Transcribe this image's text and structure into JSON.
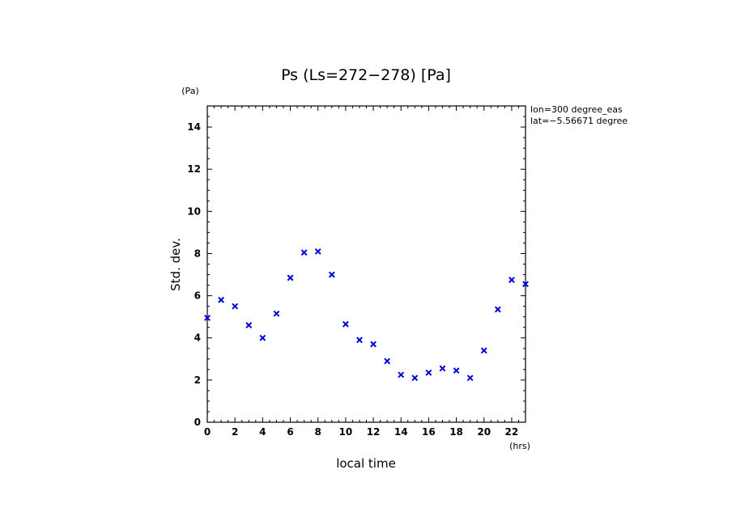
{
  "chart_data": {
    "type": "scatter",
    "title": "Ps (Ls=272−278) [Pa]",
    "xlabel": "local time",
    "ylabel": "Std. dev.",
    "x_unit": "(hrs)",
    "y_unit": "(Pa)",
    "annotations": [
      "lon=300 degree_eas",
      "lat=−5.56671 degree"
    ],
    "xlim": [
      0,
      23
    ],
    "ylim": [
      0,
      15
    ],
    "x_major_ticks": [
      0,
      2,
      4,
      6,
      8,
      10,
      12,
      14,
      16,
      18,
      20,
      22
    ],
    "y_major_ticks": [
      0,
      2,
      4,
      6,
      8,
      10,
      12,
      14
    ],
    "grid": false,
    "marker": "x",
    "marker_color": "#0000dd",
    "series": [
      {
        "x": [
          0,
          1,
          2,
          3,
          4,
          5,
          6,
          7,
          8,
          9,
          10,
          11,
          12,
          13,
          14,
          15,
          16,
          17,
          18,
          19,
          20,
          21,
          22,
          23
        ],
        "values": [
          4.95,
          5.8,
          5.5,
          4.6,
          4.0,
          5.15,
          6.85,
          8.05,
          8.1,
          7.0,
          4.65,
          3.9,
          3.7,
          2.9,
          2.25,
          2.1,
          2.35,
          2.55,
          2.45,
          2.1,
          3.4,
          5.35,
          6.75,
          6.55
        ]
      }
    ]
  }
}
